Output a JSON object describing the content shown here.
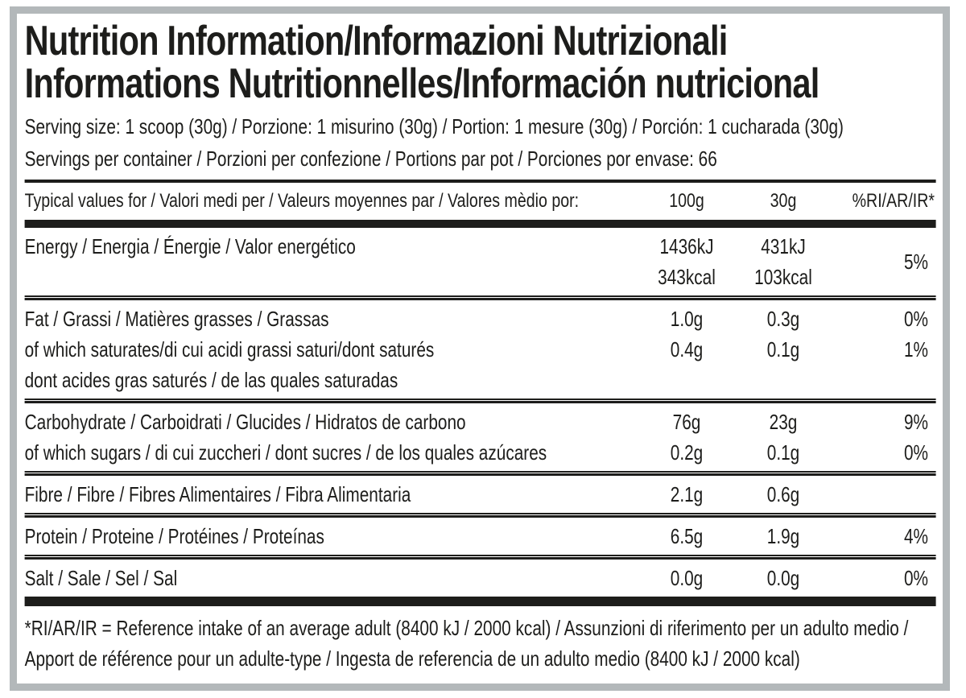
{
  "colors": {
    "text": "#1d1d1b",
    "frame_border": "#b3b8ba",
    "rule": "#1d1d1b",
    "background": "#ffffff"
  },
  "label": {
    "title_line1": "Nutrition Information/Informazioni Nutrizionali",
    "title_line2": "Informations Nutritionnelles/Información nutricional",
    "serving_size": "Serving size: 1 scoop (30g) / Porzione: 1 misurino (30g) / Portion: 1 mesure (30g) / Porción: 1 cucharada (30g)",
    "servings_per_container": "Servings per container / Porzioni per confezione / Portions par pot / Porciones por envase: 66",
    "table": {
      "header": {
        "label": "Typical values for / Valori medi per / Valeurs moyennes par / Valores mèdio por:",
        "col_100g": "100g",
        "col_30g": "30g",
        "col_ri": "%RI/AR/IR*"
      },
      "rows": [
        {
          "name": "energy",
          "labels": [
            "Energy / Energia / Énergie / Valor energético"
          ],
          "v100": [
            "1436kJ",
            "343kcal"
          ],
          "v30": [
            "431kJ",
            "103kcal"
          ],
          "ri": [
            "5%"
          ]
        },
        {
          "name": "fat",
          "labels": [
            "Fat / Grassi / Matières grasses / Grassas",
            "of which saturates/di cui acidi grassi saturi/dont saturés",
            "dont acides gras saturés / de las quales saturadas"
          ],
          "v100": [
            "1.0g",
            "0.4g"
          ],
          "v30": [
            "0.3g",
            "0.1g"
          ],
          "ri": [
            "0%",
            "1%"
          ]
        },
        {
          "name": "carbohydrate",
          "labels": [
            "Carbohydrate / Carboidrati / Glucides / Hidratos de carbono",
            "of which sugars / di cui zuccheri / dont sucres / de los quales azúcares"
          ],
          "v100": [
            "76g",
            "0.2g"
          ],
          "v30": [
            "23g",
            "0.1g"
          ],
          "ri": [
            "9%",
            "0%"
          ]
        },
        {
          "name": "fibre",
          "labels": [
            "Fibre / Fibre / Fibres Alimentaires / Fibra Alimentaria"
          ],
          "v100": [
            "2.1g"
          ],
          "v30": [
            "0.6g"
          ],
          "ri": [
            ""
          ]
        },
        {
          "name": "protein",
          "labels": [
            "Protein / Proteine / Protéines / Proteínas"
          ],
          "v100": [
            "6.5g"
          ],
          "v30": [
            "1.9g"
          ],
          "ri": [
            "4%"
          ]
        },
        {
          "name": "salt",
          "labels": [
            "Salt / Sale / Sel / Sal"
          ],
          "v100": [
            "0.0g"
          ],
          "v30": [
            "0.0g"
          ],
          "ri": [
            "0%"
          ]
        }
      ]
    },
    "footnote": "*RI/AR/IR = Reference intake of an average adult (8400 kJ / 2000 kcal)  / Assunzioni di riferimento per un adulto medio / Apport de référence pour un adulte-type / Ingesta de referencia de un adulto medio (8400 kJ / 2000 kcal)"
  }
}
